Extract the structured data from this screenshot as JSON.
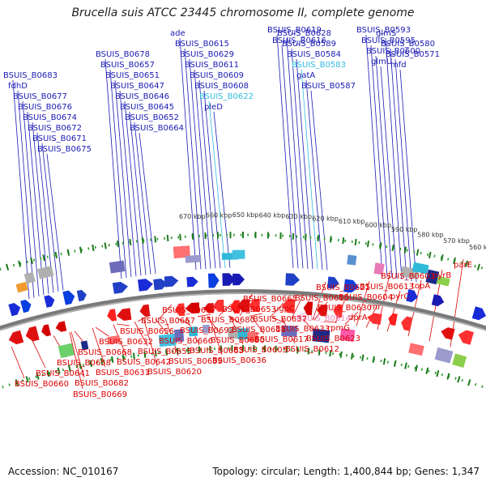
{
  "title": "Brucella suis ATCC 23445 chromosome II, complete genome",
  "footer": {
    "accession": "Accession: NC_010167",
    "summary": "Topology: circular; Length: 1,400,844 bp; Genes: 1,347"
  },
  "colors": {
    "forward_label": "#1a1ab4",
    "reverse_label": "#dd0000",
    "pseudo_forward_label": "#33bbdd",
    "pseudo_reverse_label": "#ee88bb",
    "backbone": "#808080",
    "ticks": "#2e9a2e"
  },
  "kbp_ticks": [
    "560 kbp",
    "570 kbp",
    "580 kbp",
    "590 kbp",
    "600 kbp",
    "610 kbp",
    "620 kbp",
    "630 kbp",
    "640 kbp",
    "650 kbp",
    "660 kbp",
    "670 kbp"
  ],
  "forward_labels": [
    {
      "text": "BSUIS_B0683",
      "kind": "forward"
    },
    {
      "text": "fdhD",
      "kind": "forward"
    },
    {
      "text": "BSUIS_B0677",
      "kind": "forward"
    },
    {
      "text": "BSUIS_B0676",
      "kind": "forward"
    },
    {
      "text": "BSUIS_B0674",
      "kind": "forward"
    },
    {
      "text": "BSUIS_B0672",
      "kind": "forward"
    },
    {
      "text": "BSUIS_B0671",
      "kind": "forward"
    },
    {
      "text": "BSUIS_B0675",
      "kind": "forward"
    },
    {
      "text": "BSUIS_B0678",
      "kind": "forward"
    },
    {
      "text": "BSUIS_B0657",
      "kind": "forward"
    },
    {
      "text": "BSUIS_B0651",
      "kind": "forward"
    },
    {
      "text": "BSUIS_B0647",
      "kind": "forward"
    },
    {
      "text": "BSUIS_B0646",
      "kind": "forward"
    },
    {
      "text": "BSUIS_B0645",
      "kind": "forward"
    },
    {
      "text": "BSUIS_B0652",
      "kind": "forward"
    },
    {
      "text": "BSUIS_B0664",
      "kind": "forward"
    },
    {
      "text": "ade",
      "kind": "forward"
    },
    {
      "text": "BSUIS_B0615",
      "kind": "forward"
    },
    {
      "text": "BSUIS_B0629",
      "kind": "forward"
    },
    {
      "text": "BSUIS_B0611",
      "kind": "forward"
    },
    {
      "text": "BSUIS_B0609",
      "kind": "forward"
    },
    {
      "text": "BSUIS_B0608",
      "kind": "forward"
    },
    {
      "text": "BSUIS_B0622",
      "kind": "pseudo"
    },
    {
      "text": "pleD",
      "kind": "forward"
    },
    {
      "text": "BSUIS_B0619",
      "kind": "forward"
    },
    {
      "text": "BSUIS_B0616",
      "kind": "forward"
    },
    {
      "text": "BSUIS_B0628",
      "kind": "forward"
    },
    {
      "text": "BSUIS_B0589",
      "kind": "forward"
    },
    {
      "text": "BSUIS_B0584",
      "kind": "forward"
    },
    {
      "text": "BSUIS_B0583",
      "kind": "pseudo"
    },
    {
      "text": "gatA",
      "kind": "forward"
    },
    {
      "text": "BSUIS_B0587",
      "kind": "forward"
    },
    {
      "text": "BSUIS_B0593",
      "kind": "forward"
    },
    {
      "text": "BSUIS_B0595",
      "kind": "forward"
    },
    {
      "text": "BSUIS_B0600",
      "kind": "forward"
    },
    {
      "text": "glmU",
      "kind": "forward"
    },
    {
      "text": "glmS",
      "kind": "forward"
    },
    {
      "text": "BSUIS_B0580",
      "kind": "forward"
    },
    {
      "text": "BSUIS_B0571",
      "kind": "forward"
    },
    {
      "text": "mfd",
      "kind": "forward"
    }
  ],
  "reverse_labels": [
    {
      "text": "parE",
      "kind": "reverse"
    },
    {
      "text": "pyrB",
      "kind": "reverse"
    },
    {
      "text": "topA",
      "kind": "reverse"
    },
    {
      "text": "pyrC",
      "kind": "reverse"
    },
    {
      "text": "rnr",
      "kind": "reverse"
    },
    {
      "text": "dprA",
      "kind": "reverse"
    },
    {
      "text": "rpmG",
      "kind": "reverse"
    },
    {
      "text": "BSUIS_B0623",
      "kind": "reverse"
    },
    {
      "text": "BSUIS_B0612",
      "kind": "reverse"
    },
    {
      "text": "BSUIS_B0603",
      "kind": "reverse"
    },
    {
      "text": "BSUIS_B0613",
      "kind": "reverse"
    },
    {
      "text": "BSUIS_B0604",
      "kind": "reverse"
    },
    {
      "text": "BSUIS_B0630",
      "kind": "reverse"
    },
    {
      "text": "BSUIS_B0614",
      "kind": "pseudo"
    },
    {
      "text": "BSUIS_B0633",
      "kind": "reverse"
    },
    {
      "text": "BSUIS_B0617",
      "kind": "reverse"
    },
    {
      "text": "BSUIS_B0605",
      "kind": "reverse"
    },
    {
      "text": "BSUIS_B0636",
      "kind": "reverse"
    },
    {
      "text": "BSUIS_B0621",
      "kind": "reverse"
    },
    {
      "text": "BSUIS_B0610",
      "kind": "reverse"
    },
    {
      "text": "ugpC",
      "kind": "reverse"
    },
    {
      "text": "BSUIS_B0637",
      "kind": "reverse"
    },
    {
      "text": "BSUIS_B0618",
      "kind": "reverse"
    },
    {
      "text": "BSUIS_B0650",
      "kind": "reverse"
    },
    {
      "text": "BSUIS_B0663",
      "kind": "reverse"
    },
    {
      "text": "BSUIS_B0639",
      "kind": "reverse"
    },
    {
      "text": "BSUIS_B0620",
      "kind": "reverse"
    },
    {
      "text": "BSUIS_B0665",
      "kind": "reverse"
    },
    {
      "text": "BSUIS_B0653",
      "kind": "reverse"
    },
    {
      "text": "BSUIS_B0680",
      "kind": "reverse"
    },
    {
      "text": "BSUIS_B0692",
      "kind": "reverse"
    },
    {
      "text": "BSUIS_B0666",
      "kind": "reverse"
    },
    {
      "text": "BSUIS_B0655",
      "kind": "reverse"
    },
    {
      "text": "BSUIS_B0642",
      "kind": "reverse"
    },
    {
      "text": "BSUIS_B0631",
      "kind": "reverse"
    },
    {
      "text": "BSUIS_B0682",
      "kind": "reverse"
    },
    {
      "text": "BSUIS_B0687",
      "kind": "reverse"
    },
    {
      "text": "BSUIS_B0667",
      "kind": "reverse"
    },
    {
      "text": "BSUIS_B0656",
      "kind": "reverse"
    },
    {
      "text": "BSUIS_B0632",
      "kind": "reverse"
    },
    {
      "text": "BSUIS_B0668",
      "kind": "reverse"
    },
    {
      "text": "BSUIS_B0658",
      "kind": "reverse"
    },
    {
      "text": "BSUIS_B0641",
      "kind": "reverse"
    },
    {
      "text": "BSUIS_B0660",
      "kind": "reverse"
    },
    {
      "text": "BSUIS_B0669",
      "kind": "reverse"
    }
  ]
}
